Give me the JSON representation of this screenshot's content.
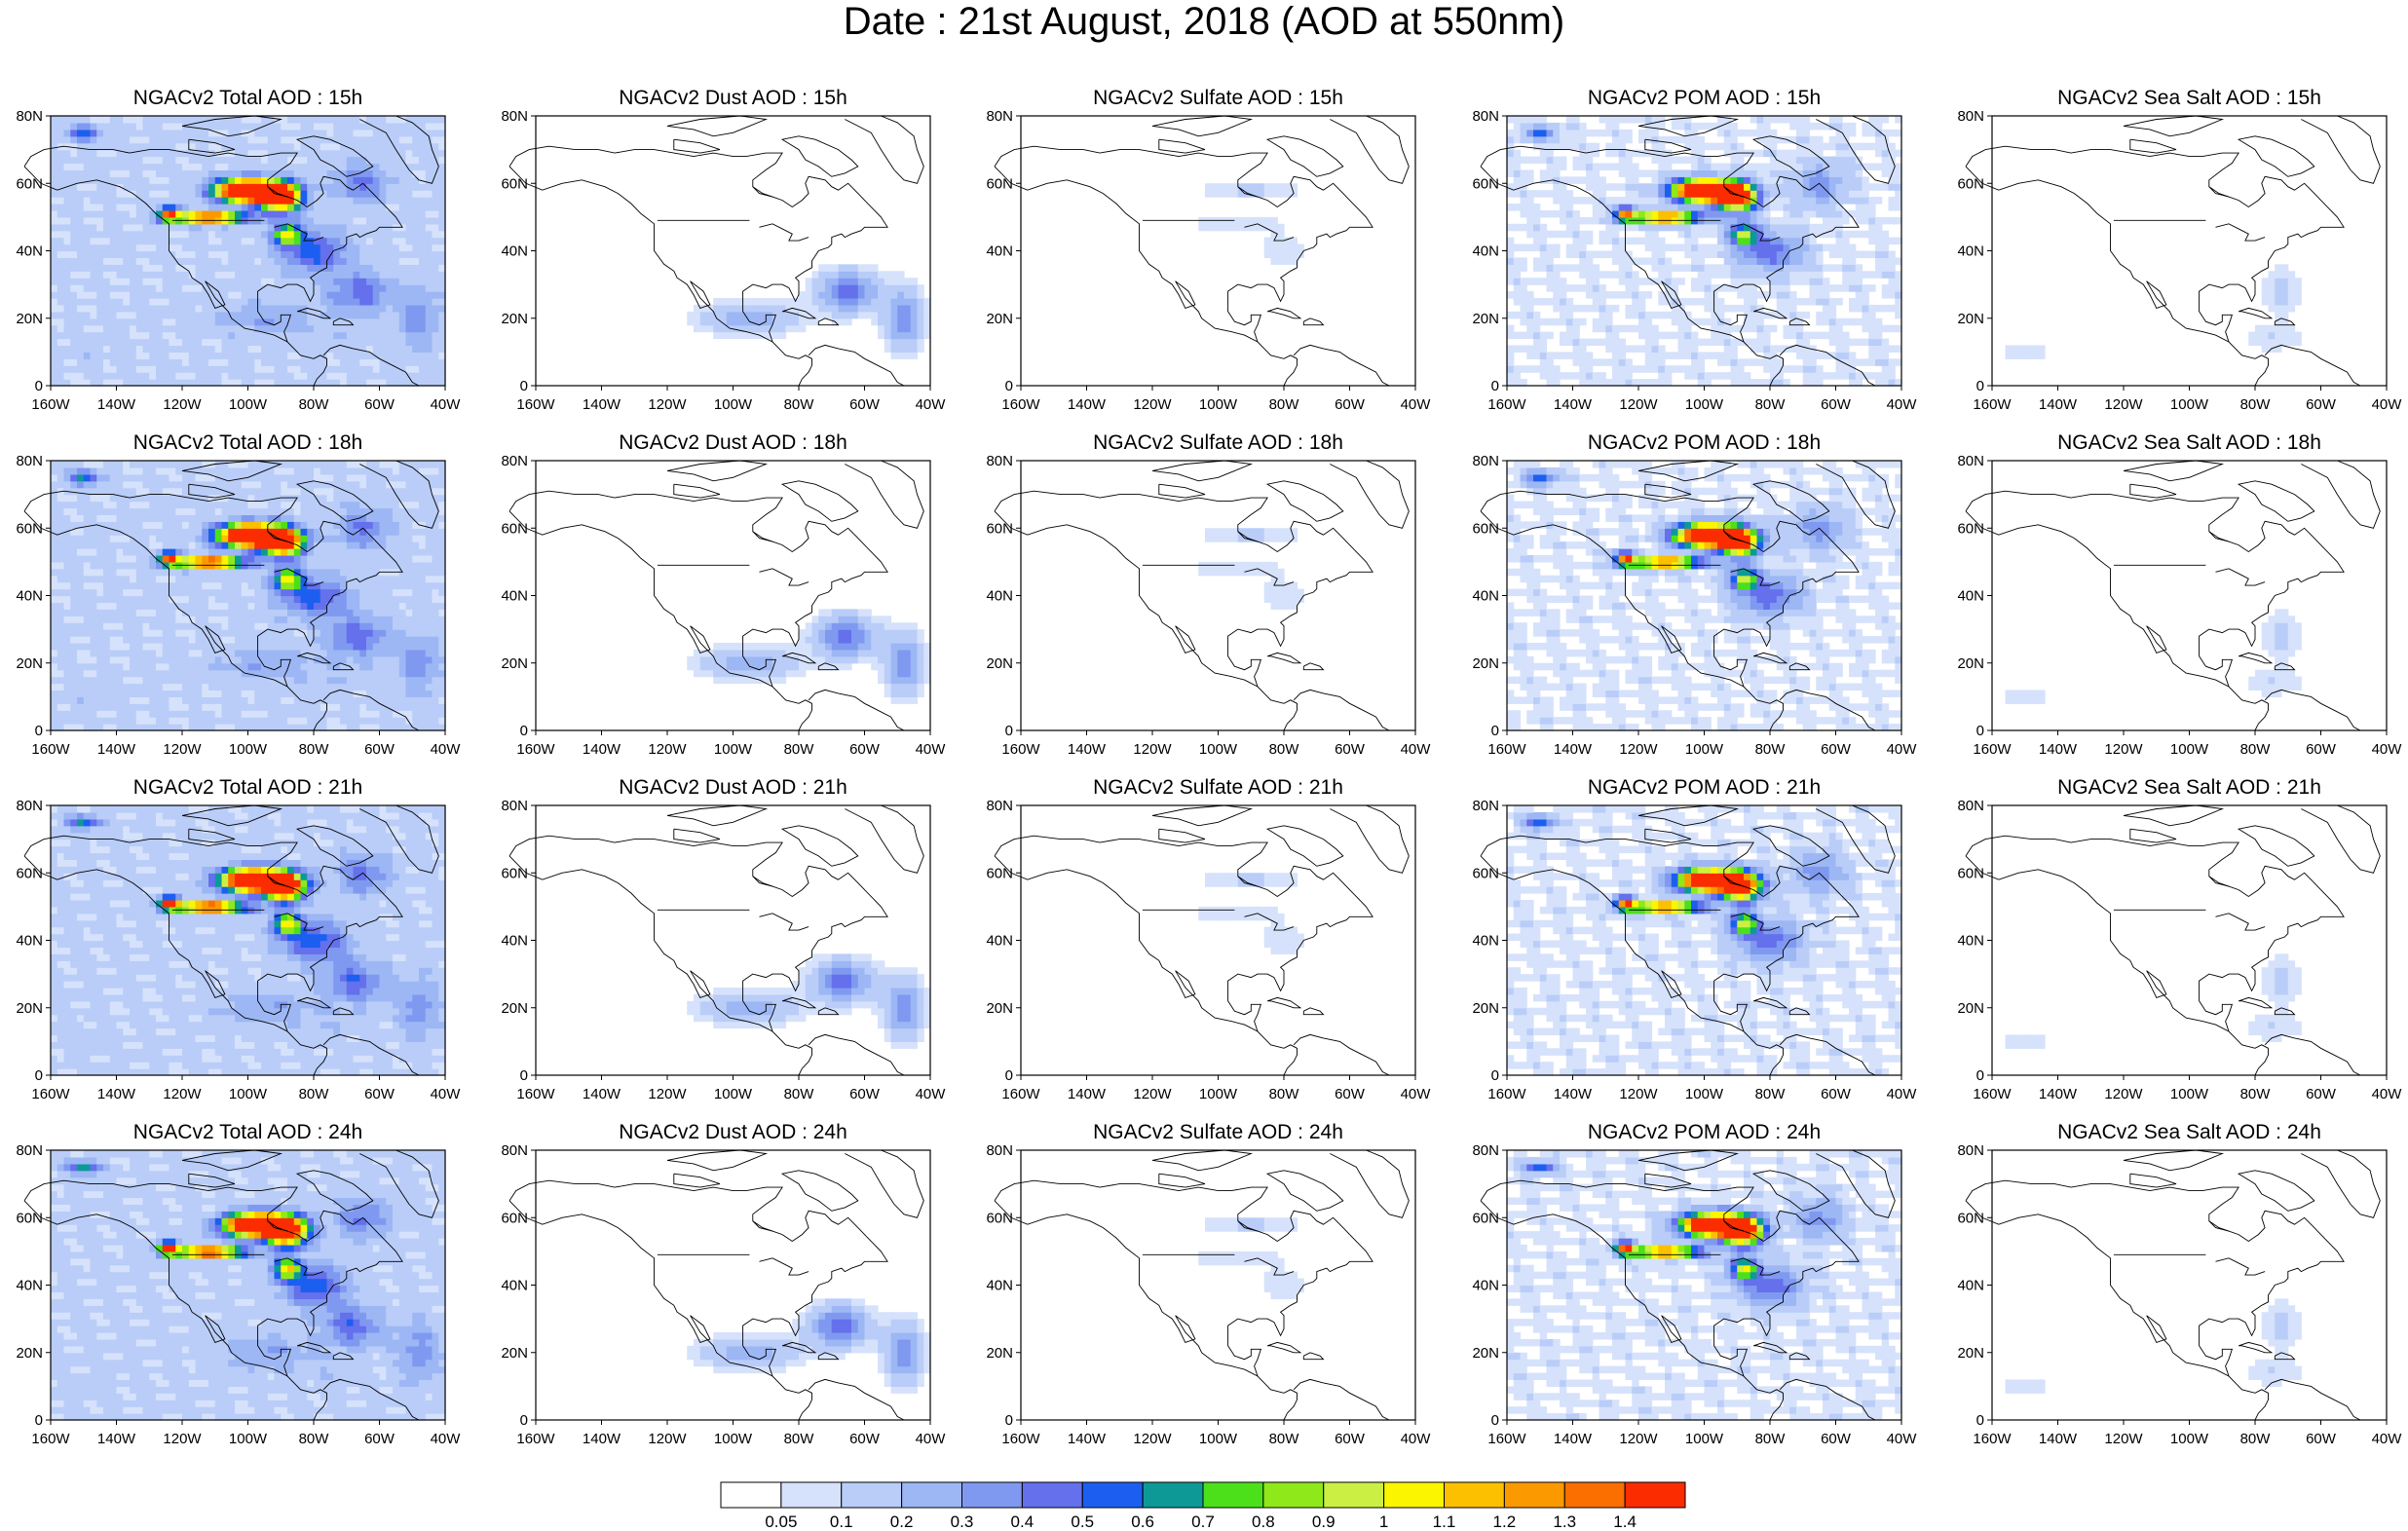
{
  "figure": {
    "title": "Date : 21st August, 2018 (AOD at 550nm)"
  },
  "rows": [
    "15h",
    "18h",
    "21h",
    "24h"
  ],
  "columns": [
    {
      "key": "total",
      "title_prefix": "NGACv2 Total AOD : ",
      "intensity": 1.0,
      "smoke": 1.0,
      "dust": 0.7,
      "sulfate": 0.3,
      "seasalt": 0.5,
      "base": 0.12
    },
    {
      "key": "dust",
      "title_prefix": "NGACv2 Dust AOD : ",
      "intensity": 0.0,
      "smoke": 0.0,
      "dust": 1.0,
      "sulfate": 0.0,
      "seasalt": 0.0,
      "base": 0.0
    },
    {
      "key": "sulfate",
      "title_prefix": "NGACv2 Sulfate AOD : ",
      "intensity": 0.0,
      "smoke": 0.0,
      "dust": 0.0,
      "sulfate": 1.0,
      "seasalt": 0.0,
      "base": 0.0
    },
    {
      "key": "pom",
      "title_prefix": "NGACv2 POM AOD : ",
      "intensity": 0.9,
      "smoke": 0.95,
      "dust": 0.0,
      "sulfate": 0.2,
      "seasalt": 0.0,
      "base": 0.06
    },
    {
      "key": "seasalt",
      "title_prefix": "NGACv2 Sea Salt AOD : ",
      "intensity": 0.0,
      "smoke": 0.0,
      "dust": 0.0,
      "sulfate": 0.0,
      "seasalt": 1.0,
      "base": 0.0
    }
  ],
  "panel_titles": [
    [
      "NGACv2 Total AOD : 15h",
      "NGACv2 Dust AOD : 15h",
      "NGACv2 Sulfate AOD : 15h",
      "NGACv2 POM AOD : 15h",
      "NGACv2 Sea Salt AOD : 15h"
    ],
    [
      "NGACv2 Total AOD : 18h",
      "NGACv2 Dust AOD : 18h",
      "NGACv2 Sulfate AOD : 18h",
      "NGACv2 POM AOD : 18h",
      "NGACv2 Sea Salt AOD : 18h"
    ],
    [
      "NGACv2 Total AOD : 21h",
      "NGACv2 Dust AOD : 21h",
      "NGACv2 Sulfate AOD : 21h",
      "NGACv2 POM AOD : 21h",
      "NGACv2 Sea Salt AOD : 21h"
    ],
    [
      "NGACv2 Total AOD : 24h",
      "NGACv2 Dust AOD : 24h",
      "NGACv2 Sulfate AOD : 24h",
      "NGACv2 POM AOD : 24h",
      "NGACv2 Sea Salt  AOD : 24h"
    ]
  ],
  "axes": {
    "lat_labels": [
      "0",
      "20N",
      "40N",
      "60N",
      "80N"
    ],
    "lon_labels": [
      "160W",
      "140W",
      "120W",
      "100W",
      "80W",
      "60W",
      "40W"
    ],
    "lat_range": [
      0,
      80
    ],
    "lon_range": [
      -160,
      -40
    ]
  },
  "colorbar": {
    "labels": [
      "0.05",
      "0.1",
      "0.2",
      "0.3",
      "0.4",
      "0.5",
      "0.6",
      "0.7",
      "0.8",
      "0.9",
      "1",
      "1.1",
      "1.2",
      "1.3",
      "1.4"
    ],
    "colors": [
      "#ffffff",
      "#d6e2fb",
      "#b9cdf8",
      "#9db7f5",
      "#8099f0",
      "#6470ec",
      "#1c5ff0",
      "#0d9a96",
      "#4be01a",
      "#8fe81a",
      "#ccef43",
      "#fcf500",
      "#fcc000",
      "#fb9a00",
      "#fb6e00",
      "#fa2c00"
    ]
  }
}
